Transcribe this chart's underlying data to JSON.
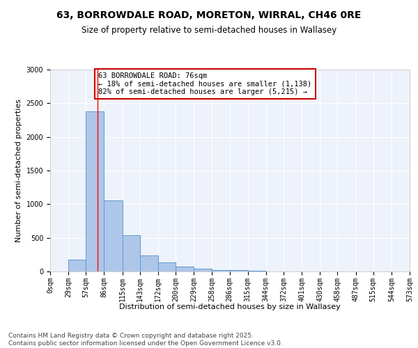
{
  "title": "63, BORROWDALE ROAD, MORETON, WIRRAL, CH46 0RE",
  "subtitle": "Size of property relative to semi-detached houses in Wallasey",
  "xlabel": "Distribution of semi-detached houses by size in Wallasey",
  "ylabel": "Number of semi-detached properties",
  "footer_line1": "Contains HM Land Registry data © Crown copyright and database right 2025.",
  "footer_line2": "Contains public sector information licensed under the Open Government Licence v3.0.",
  "annotation_title": "63 BORROWDALE ROAD: 76sqm",
  "annotation_line2": "← 18% of semi-detached houses are smaller (1,138)",
  "annotation_line3": "82% of semi-detached houses are larger (5,215) →",
  "property_size_sqm": 76,
  "bin_edges": [
    0,
    29,
    57,
    86,
    115,
    143,
    172,
    200,
    229,
    258,
    286,
    315,
    344,
    372,
    401,
    430,
    458,
    487,
    515,
    544,
    573
  ],
  "bar_values": [
    0,
    175,
    2380,
    1060,
    540,
    235,
    130,
    70,
    40,
    20,
    25,
    10,
    5,
    0,
    0,
    0,
    0,
    0,
    0,
    0
  ],
  "bar_color": "#aec6e8",
  "bar_edgecolor": "#5b9bd5",
  "redline_x": 76,
  "ylim": [
    0,
    3000
  ],
  "yticks": [
    0,
    500,
    1000,
    1500,
    2000,
    2500,
    3000
  ],
  "background_color": "#eef2fa",
  "grid_color": "#ffffff",
  "annotation_box_color": "#ffffff",
  "annotation_box_edgecolor": "#cc0000",
  "title_fontsize": 10,
  "subtitle_fontsize": 8.5,
  "axis_label_fontsize": 8,
  "tick_fontsize": 7,
  "annotation_fontsize": 7.5,
  "footer_fontsize": 6.5
}
